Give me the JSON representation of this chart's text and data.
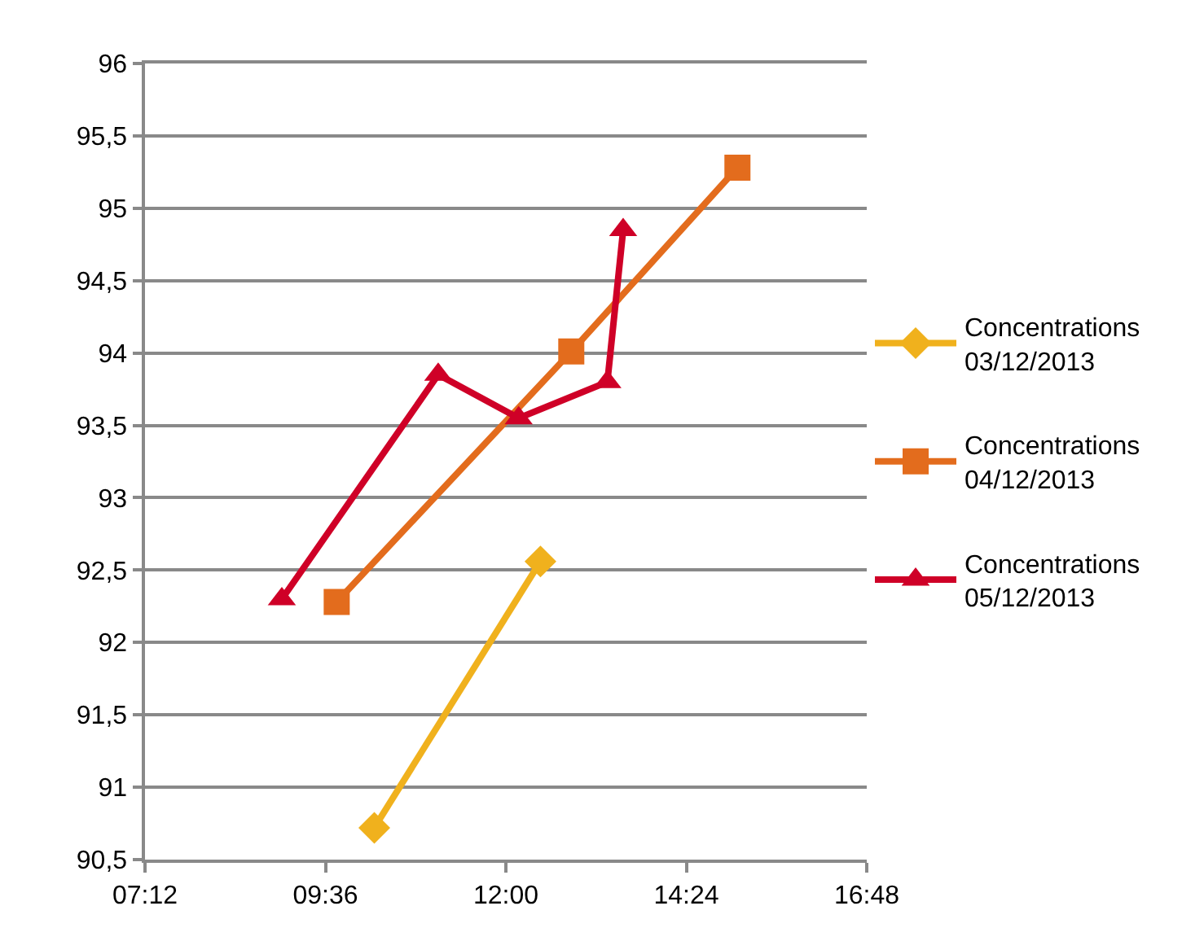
{
  "chart_data": {
    "type": "line",
    "series": [
      {
        "name": "Concentrations 03/12/2013",
        "color": "#f0b11d",
        "marker": "diamond",
        "x": [
          10.25,
          12.46
        ],
        "values": [
          90.72,
          92.56
        ]
      },
      {
        "name": "Concentrations 04/12/2013",
        "color": "#e36c1d",
        "marker": "square",
        "x": [
          9.75,
          12.87,
          15.08
        ],
        "values": [
          92.28,
          94.01,
          95.28
        ]
      },
      {
        "name": "Concentrations 05/12/2013",
        "color": "#cf0027",
        "marker": "triangle",
        "x": [
          9.02,
          11.1,
          12.17,
          13.35,
          13.56
        ],
        "values": [
          92.3,
          93.85,
          93.55,
          93.8,
          94.85
        ]
      }
    ],
    "xlim": [
      7.2,
      16.8
    ],
    "xticks": [
      {
        "value": 7.2,
        "label": "07:12"
      },
      {
        "value": 9.6,
        "label": "09:36"
      },
      {
        "value": 12,
        "label": "12:00"
      },
      {
        "value": 14.4,
        "label": "14:24"
      },
      {
        "value": 16.8,
        "label": "16:48"
      }
    ],
    "ylim": [
      90.5,
      96
    ],
    "yticks": [
      {
        "value": 90.5,
        "label": "90,5"
      },
      91,
      {
        "value": 91.5,
        "label": "91,5"
      },
      92,
      {
        "value": 92.5,
        "label": "92,5"
      },
      93,
      {
        "value": 93.5,
        "label": "93,5"
      },
      94,
      {
        "value": 94.5,
        "label": "94,5"
      },
      95,
      {
        "value": 95.5,
        "label": "95,5"
      },
      96
    ],
    "grid": "y",
    "legend": "right",
    "line_style": "solid"
  }
}
